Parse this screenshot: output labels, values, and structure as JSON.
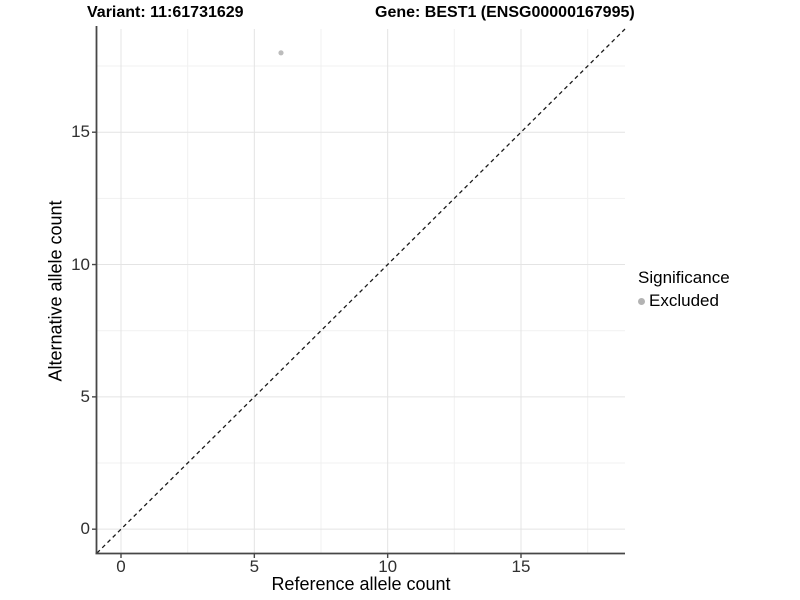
{
  "title": {
    "variant": "Variant: 11:61731629",
    "gene": "Gene: BEST1 (ENSG00000167995)"
  },
  "chart_data": {
    "type": "scatter",
    "title": "Variant: 11:61731629   Gene: BEST1 (ENSG00000167995)",
    "xlabel": "Reference allele count",
    "ylabel": "Alternative allele count",
    "xlim": [
      -0.9,
      18.9
    ],
    "ylim": [
      -0.9,
      18.9
    ],
    "x_ticks": [
      0,
      5,
      10,
      15
    ],
    "y_ticks": [
      0,
      5,
      10,
      15
    ],
    "x_minor_ticks": [
      2.5,
      7.5,
      12.5,
      17.5
    ],
    "y_minor_ticks": [
      2.5,
      7.5,
      12.5,
      17.5
    ],
    "grid": true,
    "series": [
      {
        "name": "Excluded",
        "points": [
          {
            "x": 6,
            "y": 18
          }
        ]
      }
    ],
    "reference_line": {
      "type": "identity",
      "equation": "y = x",
      "style": "dashed"
    },
    "legend": {
      "title": "Significance",
      "position": "right",
      "items": [
        {
          "label": "Excluded",
          "marker": "circle",
          "color": "#b3b3b3"
        }
      ]
    },
    "colors": {
      "point": "#bcbcbc",
      "grid_major": "#e4e4e4",
      "grid_minor": "#f1f1f1",
      "axis_line": "#474747",
      "dashed_line": "#1a1a1a",
      "background": "#ffffff"
    }
  }
}
